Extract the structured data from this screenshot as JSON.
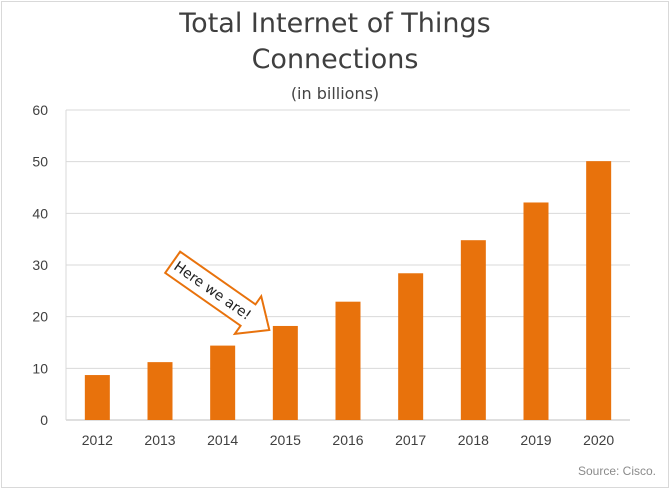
{
  "chart_data": {
    "type": "bar",
    "title_line1": "Total Internet of Things",
    "title_line2": "Connections",
    "subtitle": "(in billions)",
    "categories": [
      "2012",
      "2013",
      "2014",
      "2015",
      "2016",
      "2017",
      "2018",
      "2019",
      "2020"
    ],
    "values": [
      8.7,
      11.2,
      14.4,
      18.2,
      22.9,
      28.4,
      34.8,
      42.1,
      50.1
    ],
    "ylim": [
      0,
      60
    ],
    "yticks": [
      0,
      10,
      20,
      30,
      40,
      50,
      60
    ],
    "grid": true,
    "annotation": "Here we are!",
    "annotation_target": "2015",
    "source": "Source: Cisco.",
    "colors": {
      "bar": "#e8720c",
      "grid": "#d9d9d9",
      "axis_text": "#404040",
      "arrow_border": "#e8720c"
    }
  }
}
